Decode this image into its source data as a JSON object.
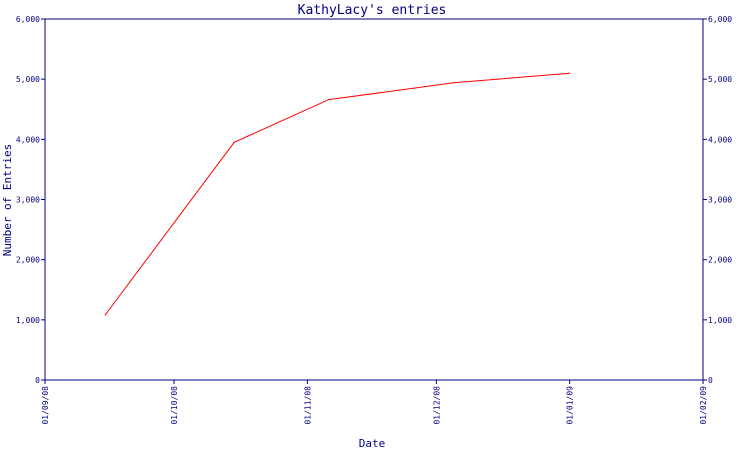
{
  "chart_data": {
    "type": "line",
    "title": "KathyLacy's entries",
    "xlabel": "Date",
    "ylabel": "Number of Entries",
    "ylim": [
      0,
      6000
    ],
    "yticks": [
      0,
      1000,
      2000,
      3000,
      4000,
      5000,
      6000
    ],
    "ytick_labels": [
      "0",
      "1,000",
      "2,000",
      "3,000",
      "4,000",
      "5,000",
      "6,000"
    ],
    "xlim": [
      "2008-09-01",
      "2009-02-01"
    ],
    "xticks": [
      "2008-09-01",
      "2008-10-01",
      "2008-11-01",
      "2008-12-01",
      "2009-01-01",
      "2009-02-01"
    ],
    "xtick_labels": [
      "01/09/08",
      "01/10/08",
      "01/11/08",
      "01/12/08",
      "01/01/09",
      "01/02/09"
    ],
    "grid": false,
    "series": [
      {
        "color": "#ff0000",
        "x": [
          "2008-09-15",
          "2008-10-15",
          "2008-11-06",
          "2008-12-05",
          "2009-01-01"
        ],
        "y": [
          1080,
          3950,
          4660,
          4940,
          5100
        ]
      }
    ],
    "colors": {
      "axis": "#000080",
      "text": "#000080",
      "line": "#ff0000",
      "background": "#ffffff"
    }
  }
}
